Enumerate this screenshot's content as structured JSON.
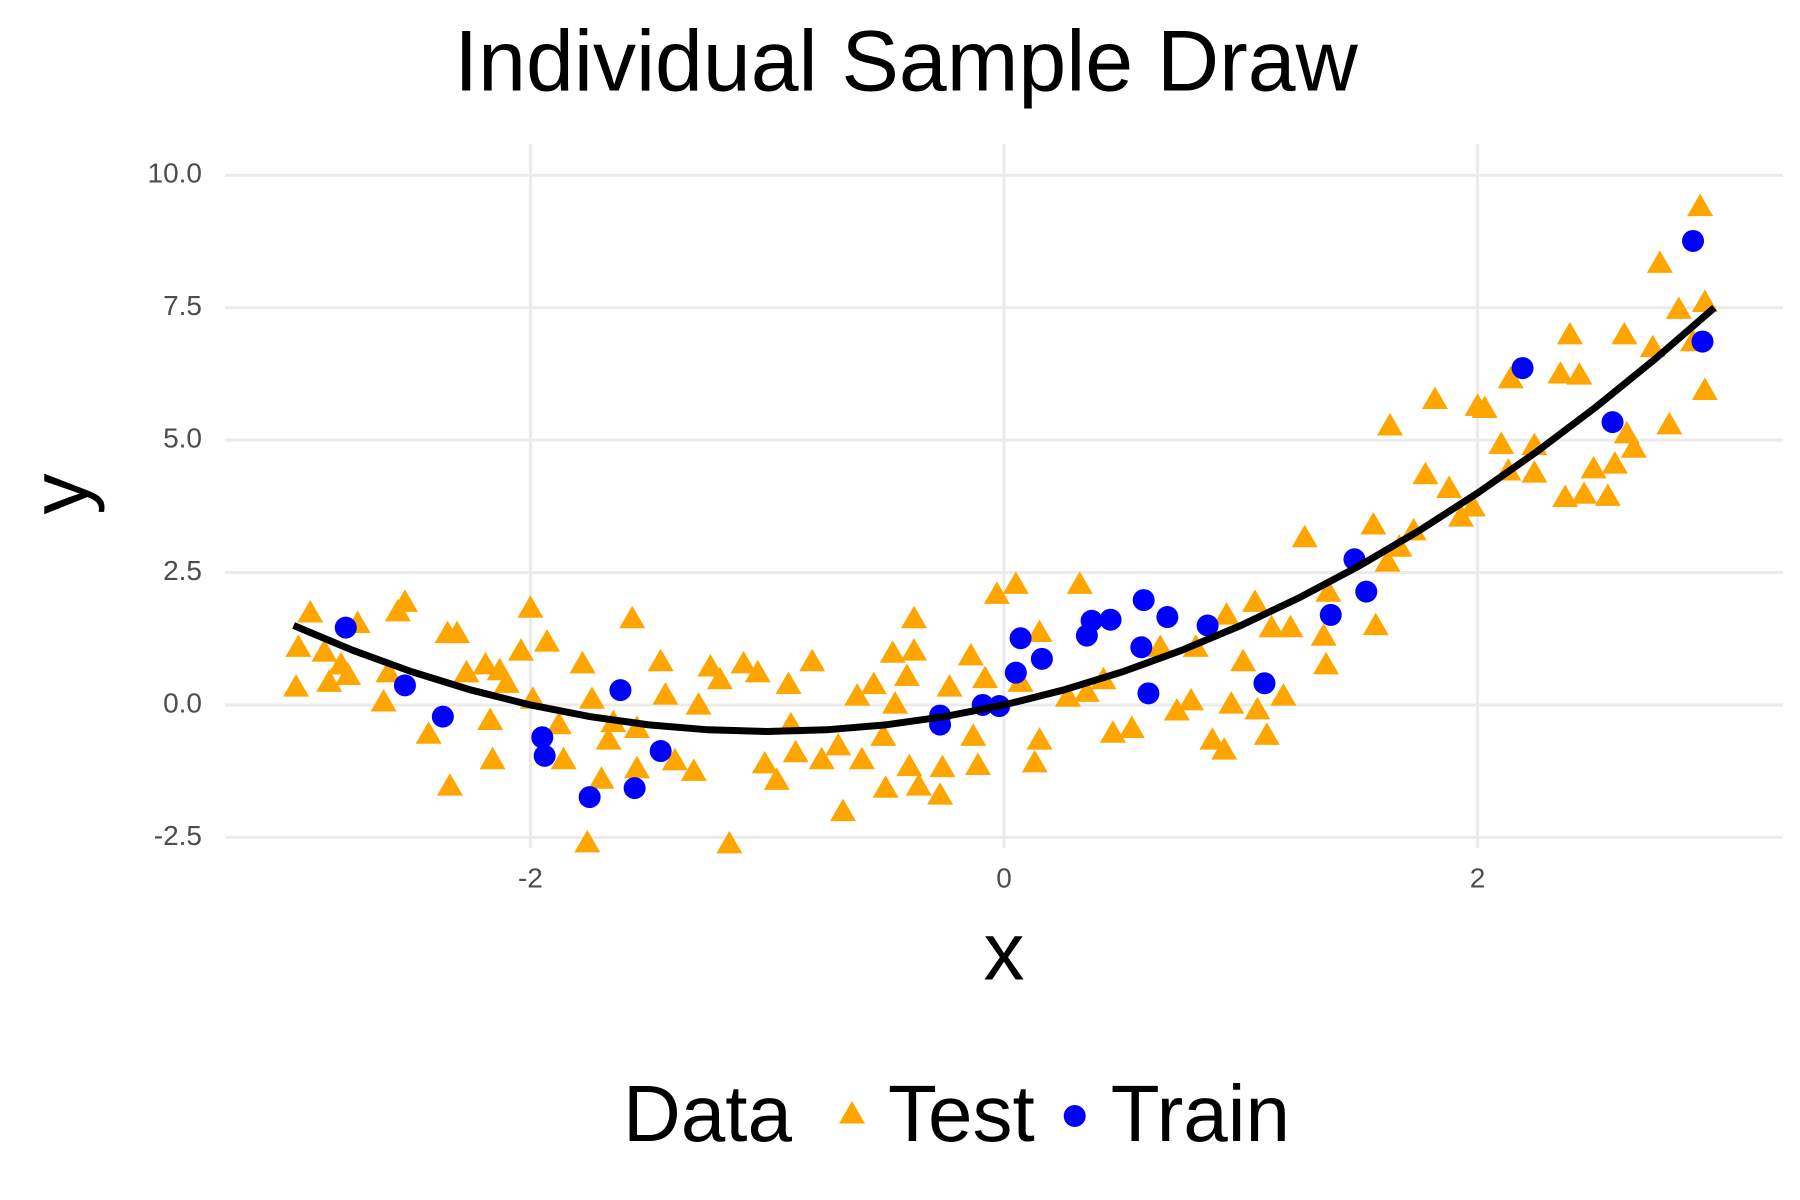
{
  "chart_data": {
    "type": "scatter",
    "title": "Individual Sample Draw",
    "x_label": "x",
    "y_label": "y",
    "xlim": [
      -3.29,
      3.29
    ],
    "ylim": [
      -2.7,
      10.59
    ],
    "xticks": [
      -2,
      0,
      2
    ],
    "yticks": [
      -2.5,
      {
        "value": 0,
        "label": "0.0"
      },
      2.5,
      {
        "value": 5,
        "label": "5.0"
      },
      7.5,
      {
        "value": 10,
        "label": "10.0"
      }
    ],
    "grid": true,
    "legend_title": "Data",
    "legend_position": "bottom",
    "series": [
      {
        "name": "Test",
        "color": "#FFA500",
        "marker": "triangle",
        "x": [
          -2.99,
          -2.98,
          -2.93,
          -2.87,
          -2.85,
          -2.8,
          -2.77,
          -2.73,
          -2.62,
          -2.6,
          -2.56,
          -2.53,
          -2.43,
          -2.35,
          -2.34,
          -2.31,
          -2.27,
          -2.19,
          -2.17,
          -2.16,
          -2.13,
          -2.1,
          -2.04,
          -2.0,
          -1.99,
          -1.93,
          -1.88,
          -1.86,
          -1.78,
          -1.76,
          -1.74,
          -1.7,
          -1.67,
          -1.65,
          -1.57,
          -1.55,
          -1.55,
          -1.45,
          -1.43,
          -1.39,
          -1.31,
          -1.29,
          -1.24,
          -1.2,
          -1.16,
          -1.1,
          -1.04,
          -1.01,
          -0.96,
          -0.91,
          -0.9,
          -0.88,
          -0.81,
          -0.77,
          -0.7,
          -0.68,
          -0.62,
          -0.6,
          -0.55,
          -0.51,
          -0.5,
          -0.47,
          -0.46,
          -0.41,
          -0.4,
          -0.38,
          -0.36,
          -0.38,
          -0.27,
          -0.26,
          -0.23,
          -0.14,
          -0.13,
          -0.11,
          -0.08,
          -0.03,
          0.05,
          0.07,
          0.13,
          0.15,
          0.15,
          0.27,
          0.32,
          0.35,
          0.42,
          0.46,
          0.54,
          0.66,
          0.73,
          0.79,
          0.81,
          0.88,
          0.93,
          0.94,
          0.96,
          1.01,
          1.06,
          1.07,
          1.11,
          1.13,
          1.18,
          1.21,
          1.27,
          1.35,
          1.36,
          1.37,
          1.56,
          1.57,
          1.62,
          1.63,
          1.67,
          1.73,
          1.78,
          1.82,
          1.88,
          1.93,
          1.98,
          2.0,
          2.03,
          2.1,
          2.13,
          2.14,
          2.24,
          2.24,
          2.35,
          2.37,
          2.39,
          2.43,
          2.45,
          2.49,
          2.55,
          2.58,
          2.62,
          2.63,
          2.66,
          2.74,
          2.77,
          2.81,
          2.85,
          2.91,
          2.94,
          2.96,
          2.96
        ],
        "values": [
          0.3,
          1.05,
          1.7,
          0.96,
          0.39,
          0.72,
          0.52,
          1.5,
          0.02,
          0.57,
          1.72,
          1.9,
          -0.59,
          1.31,
          -1.57,
          1.31,
          0.57,
          0.72,
          -0.33,
          -1.07,
          0.61,
          0.37,
          0.98,
          1.79,
          0.07,
          1.15,
          -0.41,
          -1.07,
          0.74,
          -2.64,
          0.07,
          -1.44,
          -0.7,
          -0.37,
          1.59,
          -1.24,
          -0.48,
          0.78,
          0.15,
          -1.09,
          -1.29,
          -0.04,
          0.68,
          0.44,
          -2.66,
          0.74,
          0.57,
          -1.15,
          -1.46,
          0.35,
          -0.41,
          -0.94,
          0.78,
          -1.07,
          -0.81,
          -2.05,
          0.13,
          -1.07,
          0.35,
          -0.63,
          -1.61,
          0.94,
          -0.02,
          0.5,
          -1.2,
          1.59,
          -1.57,
          0.98,
          -1.74,
          -1.22,
          0.3,
          0.89,
          -0.63,
          -1.18,
          0.46,
          2.05,
          2.24,
          0.39,
          -1.13,
          1.33,
          -0.7,
          0.11,
          2.24,
          0.2,
          0.44,
          -0.57,
          -0.48,
          1.05,
          -0.15,
          0.04,
          1.05,
          -0.7,
          -0.89,
          1.66,
          -0.02,
          0.78,
          1.9,
          -0.13,
          -0.61,
          1.42,
          0.13,
          1.42,
          3.12,
          1.26,
          0.72,
          2.09,
          3.36,
          1.46,
          2.66,
          5.23,
          2.94,
          3.25,
          4.31,
          5.73,
          4.05,
          3.51,
          3.7,
          5.6,
          5.56,
          4.88,
          4.38,
          6.12,
          4.34,
          4.86,
          6.21,
          3.88,
          6.95,
          6.19,
          3.94,
          4.42,
          3.9,
          4.51,
          6.95,
          5.08,
          4.81,
          6.71,
          8.3,
          5.25,
          7.43,
          6.82,
          9.37,
          5.9,
          7.56
        ]
      },
      {
        "name": "Train",
        "color": "#0000FF",
        "marker": "circle",
        "x": [
          -2.78,
          -2.53,
          -2.37,
          -1.95,
          -1.94,
          -1.75,
          -1.62,
          -1.56,
          -1.45,
          -0.27,
          -0.27,
          -0.09,
          -0.02,
          0.05,
          0.07,
          0.16,
          0.35,
          0.37,
          0.45,
          0.58,
          0.59,
          0.61,
          0.69,
          0.86,
          1.1,
          1.38,
          1.48,
          1.53,
          2.19,
          2.57,
          2.91,
          2.95
        ],
        "values": [
          1.46,
          0.37,
          -0.22,
          -0.61,
          -0.96,
          -1.74,
          0.28,
          -1.57,
          -0.87,
          -0.2,
          -0.37,
          0.0,
          -0.02,
          0.61,
          1.26,
          0.87,
          1.31,
          1.59,
          1.61,
          1.09,
          1.98,
          0.22,
          1.66,
          1.5,
          0.41,
          1.7,
          2.75,
          2.14,
          6.36,
          5.34,
          8.76,
          6.86
        ]
      }
    ],
    "line": {
      "color": "#000000",
      "x": [
        -3,
        -2.75,
        -2.5,
        -2.25,
        -2,
        -1.75,
        -1.5,
        -1.25,
        -1,
        -0.75,
        -0.5,
        -0.25,
        0,
        0.25,
        0.5,
        0.75,
        1,
        1.25,
        1.5,
        1.75,
        2,
        2.25,
        2.5,
        2.75,
        3
      ],
      "values": [
        1.5,
        1.03125,
        0.625,
        0.28125,
        0,
        -0.21875,
        -0.375,
        -0.46875,
        -0.5,
        -0.46875,
        -0.375,
        -0.21875,
        0,
        0.28125,
        0.625,
        1.03125,
        1.5,
        2.03125,
        2.625,
        3.28125,
        4,
        4.78125,
        5.625,
        6.53125,
        7.5
      ]
    }
  }
}
